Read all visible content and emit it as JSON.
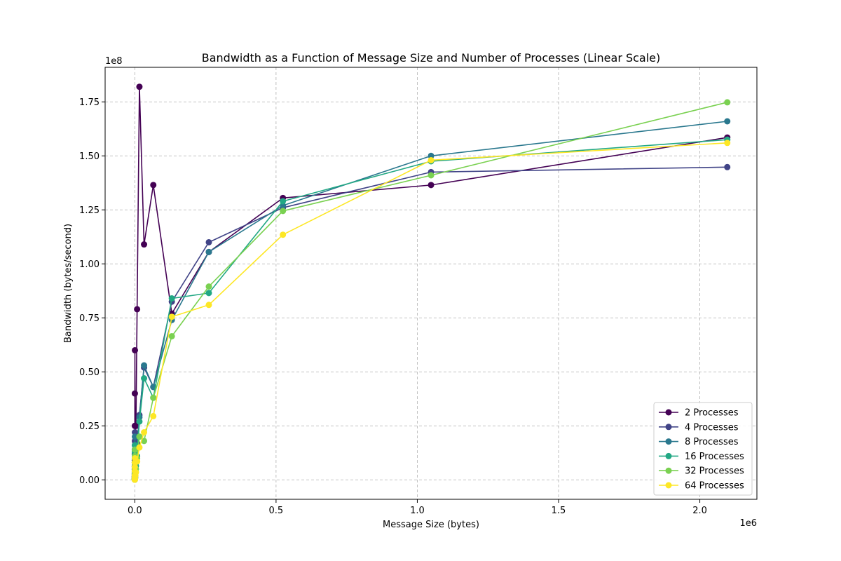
{
  "chart_data": {
    "type": "line",
    "title": "Bandwidth as a Function of Message Size and Number of Processes (Linear Scale)",
    "xlabel": "Message Size (bytes)",
    "ylabel": "Bandwidth (bytes/second)",
    "x_offset_text": "1e6",
    "y_offset_text": "1e8",
    "x_ticks": [
      "0.0",
      "0.5",
      "1.0",
      "1.5",
      "2.0"
    ],
    "y_ticks": [
      "0.00",
      "0.25",
      "0.50",
      "0.75",
      "1.00",
      "1.25",
      "1.50",
      "1.75"
    ],
    "xlim": [
      -105000,
      2202000
    ],
    "ylim": [
      -9000000,
      191000000
    ],
    "grid": true,
    "grid_style": "dashed",
    "legend_position": "lower-right",
    "x": [
      1,
      2,
      4,
      8,
      16,
      32,
      64,
      128,
      256,
      512,
      1024,
      2048,
      4096,
      8192,
      16384,
      32768,
      65536,
      131072,
      262144,
      524288,
      1048576,
      2097152
    ],
    "series": [
      {
        "name": "2 Processes",
        "color": "#440154",
        "values": [
          200000,
          400000,
          800000,
          1500000,
          3000000,
          6000000,
          12000000,
          25000000,
          40000000,
          60000000,
          7000000,
          17000000,
          25000000,
          79000000,
          182000000,
          109000000,
          136500000,
          77000000,
          105500000,
          130500000,
          136500000,
          158500000
        ]
      },
      {
        "name": "4 Processes",
        "color": "#414487",
        "values": [
          150000,
          300000,
          600000,
          1200000,
          2400000,
          4800000,
          9000000,
          14000000,
          18000000,
          22000000,
          1500000,
          5000000,
          15000000,
          17000000,
          30000000,
          52000000,
          43000000,
          82500000,
          110000000,
          126000000,
          142500000,
          144800000
        ]
      },
      {
        "name": "8 Processes",
        "color": "#2a788e",
        "values": [
          120000,
          250000,
          500000,
          1000000,
          2000000,
          4000000,
          8000000,
          12000000,
          16000000,
          20000000,
          1200000,
          4000000,
          8000000,
          15500000,
          29000000,
          53000000,
          43000000,
          74000000,
          105500000,
          127000000,
          150000000,
          166000000
        ]
      },
      {
        "name": "16 Processes",
        "color": "#22a884",
        "values": [
          100000,
          200000,
          400000,
          800000,
          1600000,
          3200000,
          6400000,
          10000000,
          13000000,
          16000000,
          1000000,
          3500000,
          6500000,
          11000000,
          27000000,
          47000000,
          38000000,
          84000000,
          86500000,
          129000000,
          147500000,
          157500000
        ]
      },
      {
        "name": "32 Processes",
        "color": "#7ad151",
        "values": [
          80000,
          160000,
          320000,
          640000,
          1300000,
          2600000,
          5200000,
          8000000,
          11000000,
          14000000,
          800000,
          3000000,
          5000000,
          10000000,
          20000000,
          18000000,
          38000000,
          66500000,
          89500000,
          124500000,
          141000000,
          174800000
        ]
      },
      {
        "name": "64 Processes",
        "color": "#fde725",
        "values": [
          60000,
          120000,
          240000,
          480000,
          1000000,
          2000000,
          4000000,
          6000000,
          8000000,
          10000000,
          500000,
          2000000,
          3500000,
          8500000,
          15000000,
          22000000,
          29500000,
          75500000,
          81000000,
          113500000,
          148000000,
          156000000
        ]
      }
    ]
  }
}
